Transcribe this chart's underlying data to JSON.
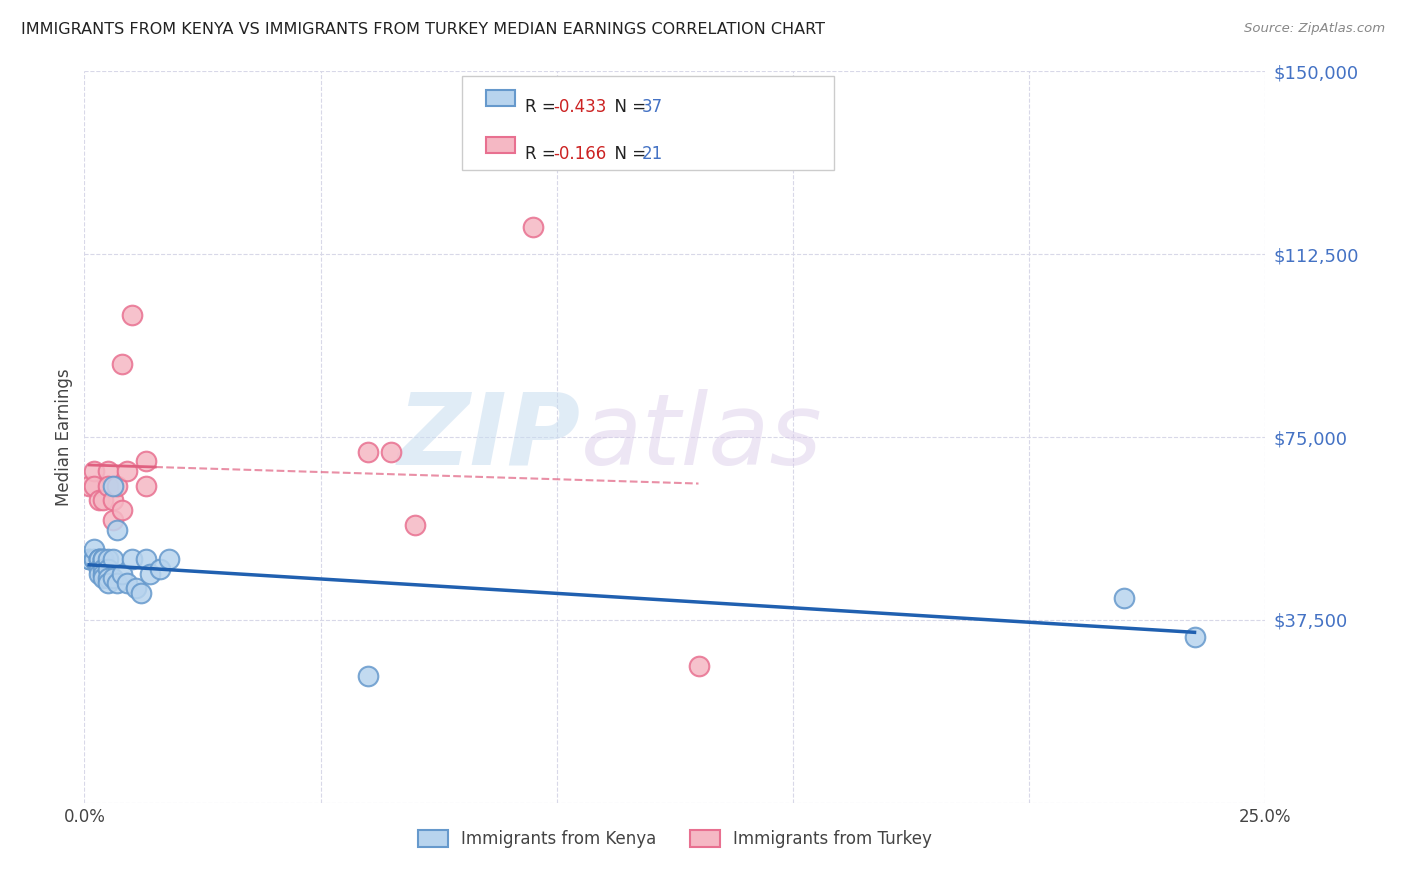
{
  "title": "IMMIGRANTS FROM KENYA VS IMMIGRANTS FROM TURKEY MEDIAN EARNINGS CORRELATION CHART",
  "source": "Source: ZipAtlas.com",
  "ylabel": "Median Earnings",
  "xlim": [
    0.0,
    0.25
  ],
  "ylim": [
    0,
    150000
  ],
  "yticks": [
    0,
    37500,
    75000,
    112500,
    150000
  ],
  "ytick_labels": [
    "",
    "$37,500",
    "$75,000",
    "$112,500",
    "$150,000"
  ],
  "xticks": [
    0.0,
    0.05,
    0.1,
    0.15,
    0.2,
    0.25
  ],
  "xtick_labels": [
    "0.0%",
    "",
    "",
    "",
    "",
    "25.0%"
  ],
  "background_color": "#ffffff",
  "grid_color": "#d8d8e8",
  "kenya_color": "#b8d4ee",
  "turkey_color": "#f5b8c4",
  "kenya_edge_color": "#6699cc",
  "turkey_edge_color": "#e87090",
  "kenya_R": -0.433,
  "kenya_N": 37,
  "turkey_R": -0.166,
  "turkey_N": 21,
  "kenya_line_color": "#2060b0",
  "turkey_line_color": "#e06080",
  "watermark_zip": "ZIP",
  "watermark_atlas": "atlas",
  "legend_label_kenya": "Immigrants from Kenya",
  "legend_label_turkey": "Immigrants from Turkey",
  "kenya_x": [
    0.001,
    0.001,
    0.002,
    0.002,
    0.002,
    0.003,
    0.003,
    0.003,
    0.003,
    0.003,
    0.004,
    0.004,
    0.004,
    0.004,
    0.004,
    0.004,
    0.005,
    0.005,
    0.005,
    0.005,
    0.006,
    0.006,
    0.006,
    0.007,
    0.007,
    0.008,
    0.009,
    0.01,
    0.011,
    0.012,
    0.013,
    0.014,
    0.016,
    0.018,
    0.06,
    0.22,
    0.235
  ],
  "kenya_y": [
    50000,
    50000,
    50000,
    50000,
    52000,
    50000,
    50000,
    50000,
    48000,
    47000,
    50000,
    50000,
    50000,
    48000,
    47000,
    46000,
    50000,
    48000,
    46000,
    45000,
    65000,
    50000,
    46000,
    56000,
    45000,
    47000,
    45000,
    50000,
    44000,
    43000,
    50000,
    47000,
    48000,
    50000,
    26000,
    42000,
    34000
  ],
  "turkey_x": [
    0.001,
    0.002,
    0.002,
    0.003,
    0.004,
    0.005,
    0.005,
    0.006,
    0.006,
    0.007,
    0.008,
    0.008,
    0.009,
    0.01,
    0.013,
    0.013,
    0.06,
    0.065,
    0.07,
    0.095,
    0.13
  ],
  "turkey_y": [
    65000,
    68000,
    65000,
    62000,
    62000,
    68000,
    65000,
    62000,
    58000,
    65000,
    60000,
    90000,
    68000,
    100000,
    70000,
    65000,
    72000,
    72000,
    57000,
    118000,
    28000
  ]
}
